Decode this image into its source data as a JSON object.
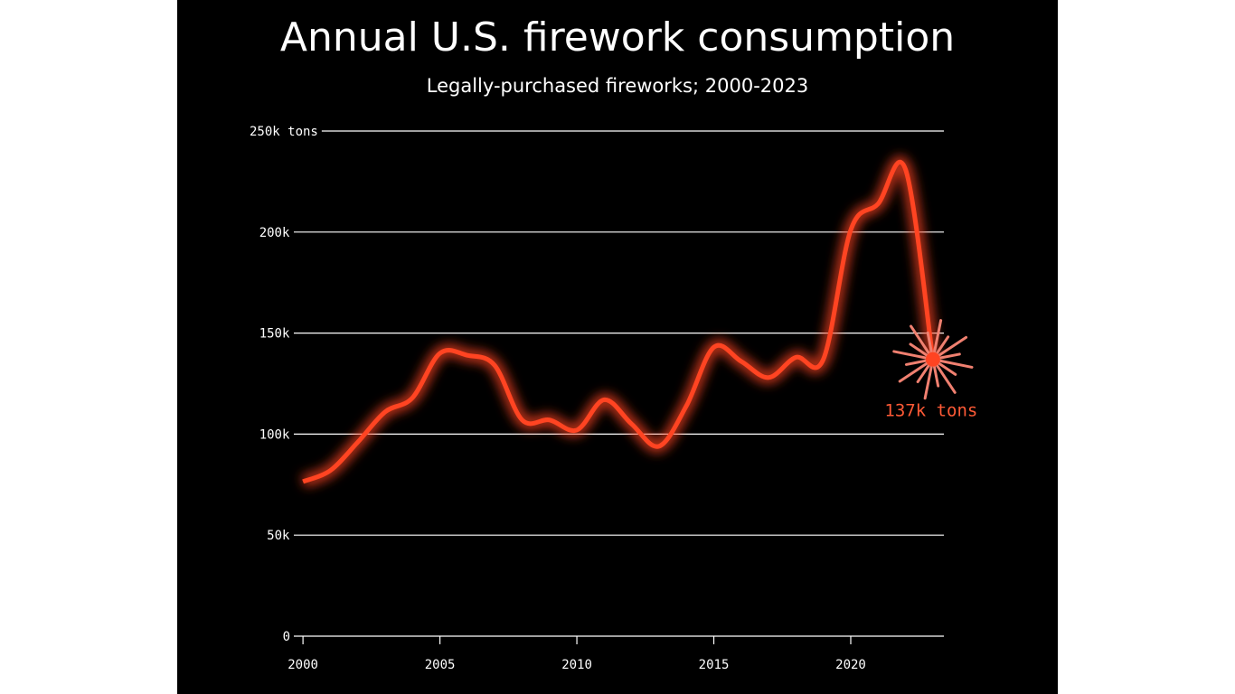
{
  "chart_data": {
    "type": "line",
    "title": "Annual U.S. firework consumption",
    "subtitle": "Legally-purchased fireworks; 2000-2023",
    "x": [
      2000,
      2001,
      2002,
      2003,
      2004,
      2005,
      2006,
      2007,
      2008,
      2009,
      2010,
      2011,
      2012,
      2013,
      2014,
      2015,
      2016,
      2017,
      2018,
      2019,
      2020,
      2021,
      2022,
      2023
    ],
    "series": [
      {
        "color": "#ff4422",
        "values": [
          76500,
          82000,
          96000,
          111000,
          118000,
          140000,
          139000,
          134000,
          107000,
          107000,
          102000,
          117000,
          105000,
          94000,
          114000,
          143000,
          136000,
          128000,
          138000,
          137000,
          201000,
          214000,
          231000,
          137000
        ],
        "value_labels": [
          null,
          null,
          null,
          null,
          null,
          null,
          null,
          null,
          null,
          null,
          null,
          null,
          null,
          null,
          null,
          null,
          null,
          null,
          null,
          null,
          null,
          null,
          null,
          "137k tons"
        ]
      }
    ],
    "xlim": [
      1999.6,
      2023.4
    ],
    "ylim": [
      0,
      250000
    ],
    "xticks": [
      2000,
      2005,
      2010,
      2015,
      2020
    ],
    "yticks": [
      0,
      {
        "value": 50000,
        "label": "50k"
      },
      {
        "value": 100000,
        "label": "100k"
      },
      {
        "value": 150000,
        "label": "150k"
      },
      {
        "value": 200000,
        "label": "200k"
      },
      {
        "value": 250000,
        "label": "250k tons"
      }
    ],
    "grid": true
  }
}
